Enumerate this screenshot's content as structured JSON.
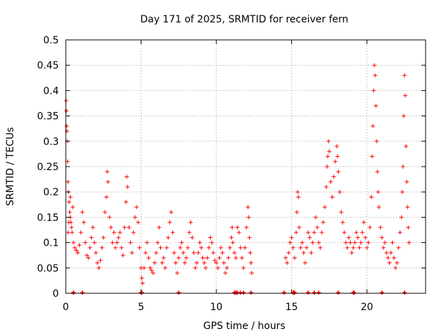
{
  "chart_data": {
    "type": "scatter",
    "title": "Day 171 of 2025, SRMTID for receiver fern",
    "xlabel": "GPS time / hours",
    "ylabel": "SRMTID / TECUs",
    "xlim": [
      0,
      23.9
    ],
    "ylim": [
      0,
      0.5
    ],
    "grid": true,
    "x_ticks": [
      0,
      5,
      10,
      15,
      20
    ],
    "x_tick_labels": [
      "0",
      "5",
      "10",
      "15",
      "20"
    ],
    "y_ticks": [
      0,
      0.05,
      0.1,
      0.15,
      0.2,
      0.25,
      0.3,
      0.35,
      0.4,
      0.45,
      0.5
    ],
    "y_tick_labels": [
      "0",
      "0.05",
      "0.1",
      "0.15",
      "0.2",
      "0.25",
      "0.3",
      "0.35",
      "0.4",
      "0.45",
      "0.5"
    ],
    "marker": "+",
    "series": [
      {
        "name": "SRMTID",
        "color": "#ff0000",
        "points": [
          [
            0.02,
            0.38
          ],
          [
            0.04,
            0.36
          ],
          [
            0.06,
            0.33
          ],
          [
            0.08,
            0.32
          ],
          [
            0.1,
            0.3
          ],
          [
            0.12,
            0.26
          ],
          [
            0.14,
            0.22
          ],
          [
            0.18,
            0.2
          ],
          [
            0.22,
            0.18
          ],
          [
            0.26,
            0.16
          ],
          [
            0.3,
            0.15
          ],
          [
            0.34,
            0.14
          ],
          [
            0.38,
            0.13
          ],
          [
            0.42,
            0.12
          ],
          [
            0.46,
            0.17
          ],
          [
            0.3,
            0.19
          ],
          [
            0.2,
            0.14
          ],
          [
            0.15,
            0.12
          ],
          [
            0.5,
            0.1
          ],
          [
            0.6,
            0.09
          ],
          [
            0.7,
            0.085
          ],
          [
            0.8,
            0.08
          ],
          [
            0.9,
            0.095
          ],
          [
            1.0,
            0.12
          ],
          [
            1.1,
            0.16
          ],
          [
            1.2,
            0.14
          ],
          [
            1.3,
            0.1
          ],
          [
            1.4,
            0.075
          ],
          [
            1.5,
            0.07
          ],
          [
            1.6,
            0.09
          ],
          [
            1.7,
            0.11
          ],
          [
            1.8,
            0.13
          ],
          [
            1.9,
            0.1
          ],
          [
            2.0,
            0.08
          ],
          [
            2.1,
            0.06
          ],
          [
            2.2,
            0.05
          ],
          [
            2.3,
            0.065
          ],
          [
            2.4,
            0.09
          ],
          [
            2.5,
            0.11
          ],
          [
            2.6,
            0.16
          ],
          [
            2.7,
            0.19
          ],
          [
            2.75,
            0.24
          ],
          [
            2.8,
            0.22
          ],
          [
            2.9,
            0.15
          ],
          [
            3.0,
            0.13
          ],
          [
            3.1,
            0.1
          ],
          [
            3.2,
            0.12
          ],
          [
            3.3,
            0.09
          ],
          [
            3.4,
            0.1
          ],
          [
            3.5,
            0.11
          ],
          [
            3.6,
            0.12
          ],
          [
            3.7,
            0.09
          ],
          [
            3.8,
            0.075
          ],
          [
            3.9,
            0.13
          ],
          [
            4.0,
            0.18
          ],
          [
            4.05,
            0.23
          ],
          [
            4.1,
            0.21
          ],
          [
            4.2,
            0.13
          ],
          [
            4.3,
            0.1
          ],
          [
            4.4,
            0.08
          ],
          [
            4.5,
            0.12
          ],
          [
            4.6,
            0.15
          ],
          [
            4.7,
            0.17
          ],
          [
            4.8,
            0.14
          ],
          [
            4.9,
            0.09
          ],
          [
            5.0,
            0.05
          ],
          [
            5.05,
            0.03
          ],
          [
            5.1,
            0.02
          ],
          [
            5.2,
            0.05
          ],
          [
            5.3,
            0.08
          ],
          [
            5.4,
            0.1
          ],
          [
            5.5,
            0.07
          ],
          [
            5.6,
            0.05
          ],
          [
            5.7,
            0.045
          ],
          [
            5.8,
            0.04
          ],
          [
            5.9,
            0.06
          ],
          [
            6.0,
            0.08
          ],
          [
            6.1,
            0.1
          ],
          [
            6.2,
            0.13
          ],
          [
            6.3,
            0.09
          ],
          [
            6.4,
            0.06
          ],
          [
            6.5,
            0.07
          ],
          [
            6.6,
            0.05
          ],
          [
            6.7,
            0.09
          ],
          [
            6.8,
            0.11
          ],
          [
            6.9,
            0.14
          ],
          [
            7.0,
            0.16
          ],
          [
            7.1,
            0.12
          ],
          [
            7.2,
            0.08
          ],
          [
            7.3,
            0.06
          ],
          [
            7.4,
            0.04
          ],
          [
            7.5,
            0.07
          ],
          [
            7.6,
            0.09
          ],
          [
            7.7,
            0.1
          ],
          [
            7.8,
            0.08
          ],
          [
            7.9,
            0.06
          ],
          [
            8.0,
            0.07
          ],
          [
            8.1,
            0.09
          ],
          [
            8.2,
            0.12
          ],
          [
            8.3,
            0.14
          ],
          [
            8.4,
            0.11
          ],
          [
            8.5,
            0.08
          ],
          [
            8.6,
            0.05
          ],
          [
            8.7,
            0.06
          ],
          [
            8.8,
            0.08
          ],
          [
            8.9,
            0.1
          ],
          [
            9.0,
            0.09
          ],
          [
            9.1,
            0.07
          ],
          [
            9.2,
            0.06
          ],
          [
            9.3,
            0.05
          ],
          [
            9.4,
            0.07
          ],
          [
            9.5,
            0.09
          ],
          [
            9.6,
            0.11
          ],
          [
            9.7,
            0.1
          ],
          [
            9.8,
            0.08
          ],
          [
            9.9,
            0.065
          ],
          [
            10.0,
            0.06
          ],
          [
            10.1,
            0.05
          ],
          [
            10.2,
            0.07
          ],
          [
            10.3,
            0.09
          ],
          [
            10.4,
            0.08
          ],
          [
            10.5,
            0.06
          ],
          [
            10.6,
            0.04
          ],
          [
            10.7,
            0.05
          ],
          [
            10.8,
            0.07
          ],
          [
            10.9,
            0.09
          ],
          [
            11.0,
            0.11
          ],
          [
            11.05,
            0.13
          ],
          [
            11.1,
            0.1
          ],
          [
            11.2,
            0.08
          ],
          [
            11.3,
            0.07
          ],
          [
            11.4,
            0.13
          ],
          [
            11.5,
            0.12
          ],
          [
            11.6,
            0.09
          ],
          [
            11.7,
            0.07
          ],
          [
            11.8,
            0.05
          ],
          [
            11.9,
            0.09
          ],
          [
            12.0,
            0.13
          ],
          [
            12.1,
            0.17
          ],
          [
            12.15,
            0.15
          ],
          [
            12.2,
            0.11
          ],
          [
            12.25,
            0.08
          ],
          [
            12.3,
            0.06
          ],
          [
            12.35,
            0.04
          ],
          [
            14.6,
            0.07
          ],
          [
            14.7,
            0.06
          ],
          [
            14.8,
            0.08
          ],
          [
            14.9,
            0.1
          ],
          [
            15.0,
            0.11
          ],
          [
            15.1,
            0.09
          ],
          [
            15.2,
            0.07
          ],
          [
            15.3,
            0.12
          ],
          [
            15.35,
            0.16
          ],
          [
            15.4,
            0.2
          ],
          [
            15.45,
            0.19
          ],
          [
            15.5,
            0.13
          ],
          [
            15.6,
            0.09
          ],
          [
            15.7,
            0.1
          ],
          [
            15.8,
            0.08
          ],
          [
            15.9,
            0.06
          ],
          [
            16.0,
            0.09
          ],
          [
            16.1,
            0.12
          ],
          [
            16.2,
            0.11
          ],
          [
            16.3,
            0.08
          ],
          [
            16.4,
            0.1
          ],
          [
            16.5,
            0.12
          ],
          [
            16.6,
            0.15
          ],
          [
            16.7,
            0.13
          ],
          [
            16.8,
            0.1
          ],
          [
            16.9,
            0.09
          ],
          [
            17.0,
            0.12
          ],
          [
            17.1,
            0.14
          ],
          [
            17.2,
            0.17
          ],
          [
            17.3,
            0.21
          ],
          [
            17.35,
            0.25
          ],
          [
            17.4,
            0.27
          ],
          [
            17.45,
            0.3
          ],
          [
            17.5,
            0.28
          ],
          [
            17.6,
            0.22
          ],
          [
            17.7,
            0.19
          ],
          [
            17.8,
            0.23
          ],
          [
            17.9,
            0.26
          ],
          [
            18.0,
            0.29
          ],
          [
            18.05,
            0.27
          ],
          [
            18.1,
            0.24
          ],
          [
            18.2,
            0.2
          ],
          [
            18.3,
            0.16
          ],
          [
            18.4,
            0.14
          ],
          [
            18.5,
            0.12
          ],
          [
            18.6,
            0.1
          ],
          [
            18.7,
            0.09
          ],
          [
            18.8,
            0.11
          ],
          [
            18.9,
            0.1
          ],
          [
            19.0,
            0.08
          ],
          [
            19.1,
            0.09
          ],
          [
            19.2,
            0.1
          ],
          [
            19.3,
            0.12
          ],
          [
            19.4,
            0.11
          ],
          [
            19.5,
            0.09
          ],
          [
            19.6,
            0.1
          ],
          [
            19.7,
            0.12
          ],
          [
            19.8,
            0.14
          ],
          [
            19.9,
            0.11
          ],
          [
            20.0,
            0.09
          ],
          [
            20.1,
            0.1
          ],
          [
            20.2,
            0.13
          ],
          [
            20.3,
            0.19
          ],
          [
            20.35,
            0.27
          ],
          [
            20.4,
            0.33
          ],
          [
            20.45,
            0.4
          ],
          [
            20.5,
            0.45
          ],
          [
            20.55,
            0.43
          ],
          [
            20.6,
            0.37
          ],
          [
            20.65,
            0.3
          ],
          [
            20.7,
            0.24
          ],
          [
            20.75,
            0.2
          ],
          [
            20.8,
            0.17
          ],
          [
            20.9,
            0.13
          ],
          [
            21.0,
            0.11
          ],
          [
            21.1,
            0.09
          ],
          [
            21.2,
            0.1
          ],
          [
            21.3,
            0.08
          ],
          [
            21.4,
            0.07
          ],
          [
            21.5,
            0.06
          ],
          [
            21.6,
            0.08
          ],
          [
            21.7,
            0.1
          ],
          [
            21.8,
            0.07
          ],
          [
            21.9,
            0.05
          ],
          [
            22.0,
            0.06
          ],
          [
            22.1,
            0.09
          ],
          [
            22.2,
            0.12
          ],
          [
            22.3,
            0.15
          ],
          [
            22.35,
            0.2
          ],
          [
            22.4,
            0.25
          ],
          [
            22.45,
            0.35
          ],
          [
            22.5,
            0.43
          ],
          [
            22.55,
            0.39
          ],
          [
            22.6,
            0.29
          ],
          [
            22.65,
            0.22
          ],
          [
            22.7,
            0.17
          ],
          [
            22.75,
            0.13
          ],
          [
            22.8,
            0.1
          ]
        ]
      }
    ],
    "baseline_markers_x": [
      0.5,
      0.52,
      1.1,
      5.0,
      5.05,
      7.5,
      11.2,
      11.3,
      11.4,
      11.6,
      11.8,
      12.3,
      14.5,
      15.1,
      15.15,
      15.2,
      16.1,
      16.5,
      16.8,
      18.1,
      19.1,
      19.15,
      21.0,
      22.5
    ]
  }
}
